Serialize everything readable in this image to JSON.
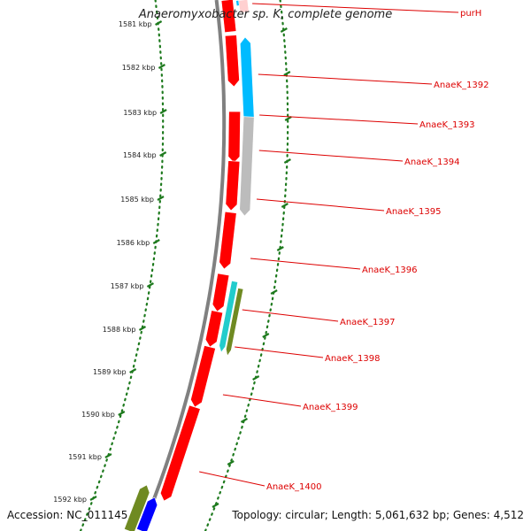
{
  "title": "Anaeromyxobacter sp. K, complete genome",
  "accession": "Accession: NC_011145",
  "summary": "Topology: circular; Length: 5,061,632 bp; Genes: 4,512",
  "colors": {
    "red": "#ff0000",
    "blue_top": "#00bbff",
    "gray": "#bcbcbc",
    "cyan": "#22cccc",
    "olive": "#6f8a22",
    "blue_dark": "#0000ff",
    "ruler": "#808080",
    "dot": "#1e7a1e",
    "label": "#dd0000"
  },
  "ticks": [
    "1581 kbp",
    "1582 kbp",
    "1583 kbp",
    "1584 kbp",
    "1585 kbp",
    "1586 kbp",
    "1587 kbp",
    "1588 kbp",
    "1589 kbp",
    "1590 kbp",
    "1591 kbp",
    "1592 kbp"
  ],
  "genes": [
    "purH",
    "AnaeK_1392",
    "AnaeK_1393",
    "AnaeK_1394",
    "AnaeK_1395",
    "AnaeK_1396",
    "AnaeK_1397",
    "AnaeK_1398",
    "AnaeK_1399",
    "AnaeK_1400"
  ]
}
